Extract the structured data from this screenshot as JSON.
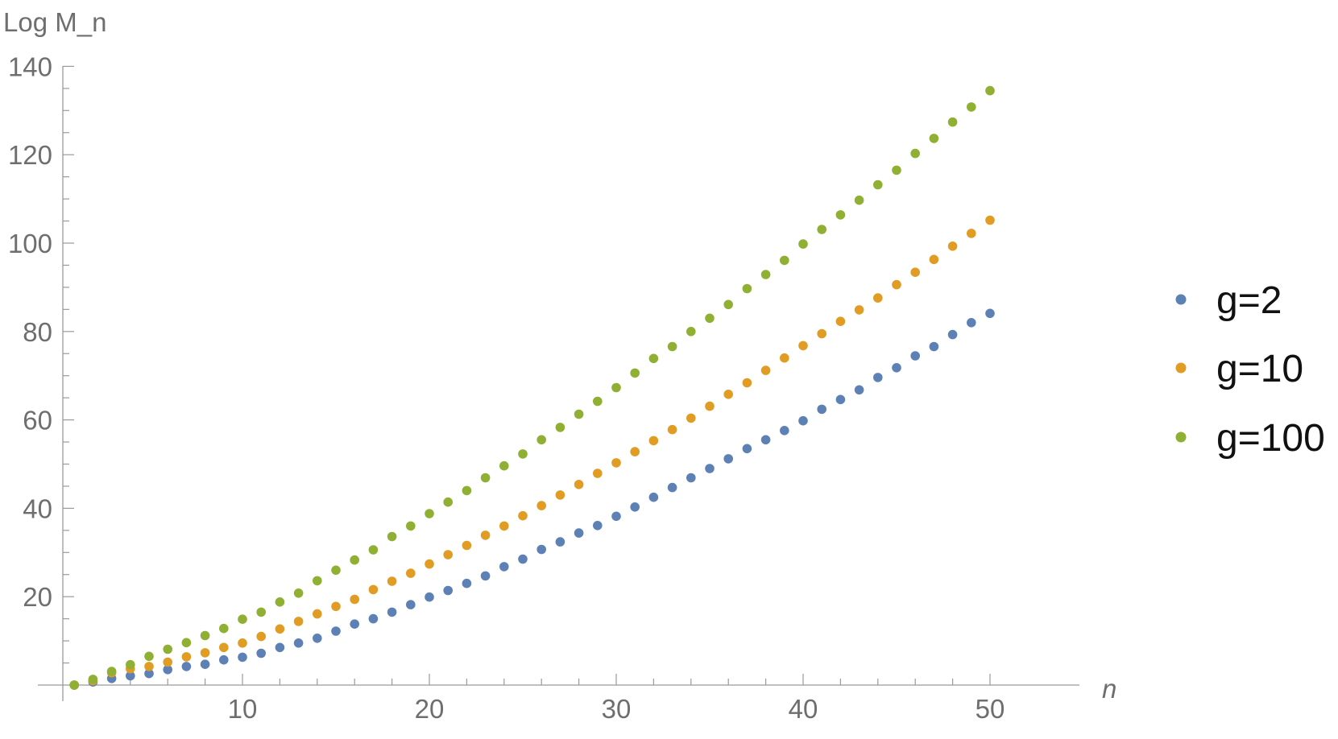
{
  "chart_data": {
    "type": "scatter",
    "title": "",
    "xlabel": "n",
    "ylabel": "Log M_n",
    "xlim": [
      0,
      51
    ],
    "ylim": [
      0,
      140
    ],
    "x_ticks": [
      10,
      20,
      30,
      40,
      50
    ],
    "y_ticks": [
      20,
      40,
      60,
      80,
      100,
      120,
      140
    ],
    "grid": false,
    "legend_position": "right",
    "x": [
      1,
      2,
      3,
      4,
      5,
      6,
      7,
      8,
      9,
      10,
      11,
      12,
      13,
      14,
      15,
      16,
      17,
      18,
      19,
      20,
      21,
      22,
      23,
      24,
      25,
      26,
      27,
      28,
      29,
      30,
      31,
      32,
      33,
      34,
      35,
      36,
      37,
      38,
      39,
      40,
      41,
      42,
      43,
      44,
      45,
      46,
      47,
      48,
      49,
      50
    ],
    "series": [
      {
        "name": "g=2",
        "color": "#5E81B5",
        "values": [
          0.0,
          0.7,
          1.5,
          2.1,
          2.6,
          3.5,
          4.2,
          4.7,
          5.7,
          6.3,
          7.2,
          8.5,
          9.5,
          10.6,
          12.2,
          13.8,
          15.0,
          16.5,
          18.2,
          19.9,
          21.4,
          23.0,
          24.7,
          26.8,
          28.5,
          30.7,
          32.4,
          34.4,
          36.1,
          38.2,
          40.3,
          42.5,
          44.7,
          46.9,
          49.0,
          51.2,
          53.5,
          55.5,
          57.6,
          59.8,
          62.4,
          64.6,
          66.8,
          69.6,
          71.8,
          74.5,
          76.6,
          79.3,
          82.0,
          84.1
        ]
      },
      {
        "name": "g=10",
        "color": "#E19C24",
        "values": [
          0.0,
          1.0,
          2.8,
          3.7,
          4.2,
          5.2,
          6.4,
          7.3,
          8.5,
          9.5,
          11.0,
          12.7,
          14.4,
          16.1,
          17.8,
          19.4,
          21.6,
          23.5,
          25.3,
          27.4,
          29.5,
          31.6,
          33.9,
          36.0,
          38.3,
          40.6,
          43.0,
          45.4,
          47.9,
          50.3,
          52.8,
          55.3,
          57.8,
          60.4,
          63.1,
          65.8,
          68.4,
          71.2,
          74.0,
          76.8,
          79.5,
          82.3,
          84.9,
          87.6,
          90.6,
          93.4,
          96.3,
          99.3,
          102.2,
          105.2
        ]
      },
      {
        "name": "g=100",
        "color": "#8FB032",
        "values": [
          0.0,
          1.3,
          3.1,
          4.6,
          6.5,
          8.1,
          9.6,
          11.2,
          12.8,
          14.9,
          16.5,
          18.8,
          20.8,
          23.6,
          26.0,
          28.3,
          30.6,
          33.6,
          36.0,
          38.8,
          41.4,
          44.0,
          46.9,
          49.6,
          52.3,
          55.5,
          58.3,
          61.3,
          64.2,
          67.3,
          70.6,
          73.9,
          76.6,
          80.0,
          83.0,
          86.1,
          89.7,
          92.9,
          96.1,
          99.8,
          103.1,
          106.4,
          109.7,
          113.2,
          116.5,
          120.3,
          123.7,
          127.4,
          130.8,
          134.5
        ]
      }
    ]
  }
}
